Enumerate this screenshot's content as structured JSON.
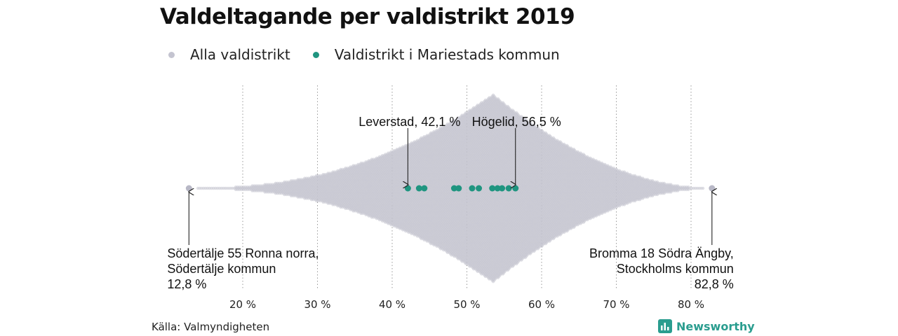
{
  "title": "Valdeltagande per valdistrikt 2019",
  "legend": [
    {
      "label": "Alla valdistrikt",
      "color": "#c4c4d0"
    },
    {
      "label": "Valdistrikt i Mariestads kommun",
      "color": "#1f9580"
    }
  ],
  "source": "Källa: Valmyndigheten",
  "brand": "Newsworthy",
  "chart_data": {
    "type": "scatter",
    "subtype": "beeswarm",
    "title": "Valdeltagande per valdistrikt 2019",
    "xlim": [
      10,
      86
    ],
    "x_ticks": [
      20,
      30,
      40,
      50,
      60,
      70,
      80
    ],
    "x_tick_labels": [
      "20 %",
      "30 %",
      "40 %",
      "50 %",
      "60 %",
      "70 %",
      "80 %"
    ],
    "grid": "vertical dotted",
    "legend_position": "top-left",
    "series": [
      {
        "name": "Alla valdistrikt",
        "color": "#c4c4d0",
        "min": 12.8,
        "max": 82.8,
        "peak": 53.5
      },
      {
        "name": "Valdistrikt i Mariestads kommun",
        "color": "#1f9580",
        "values": [
          42.1,
          43.6,
          44.3,
          48.3,
          48.9,
          50.7,
          51.6,
          53.4,
          54.1,
          54.7,
          55.6,
          56.5
        ]
      }
    ],
    "annotations": [
      {
        "lines": [
          "Leverstad, 42,1 %"
        ],
        "value": 42.1,
        "position": "above",
        "align": "end"
      },
      {
        "lines": [
          "Högelid, 56,5 %"
        ],
        "value": 56.5,
        "position": "above",
        "align": "start"
      },
      {
        "lines": [
          "Södertälje 55 Ronna norra,",
          "Södertälje kommun",
          "12,8 %"
        ],
        "value": 12.8,
        "position": "below",
        "align": "start"
      },
      {
        "lines": [
          "Bromma 18 Södra Ängby,",
          "Stockholms kommun",
          "82,8 %"
        ],
        "value": 82.8,
        "position": "below",
        "align": "end"
      }
    ]
  }
}
